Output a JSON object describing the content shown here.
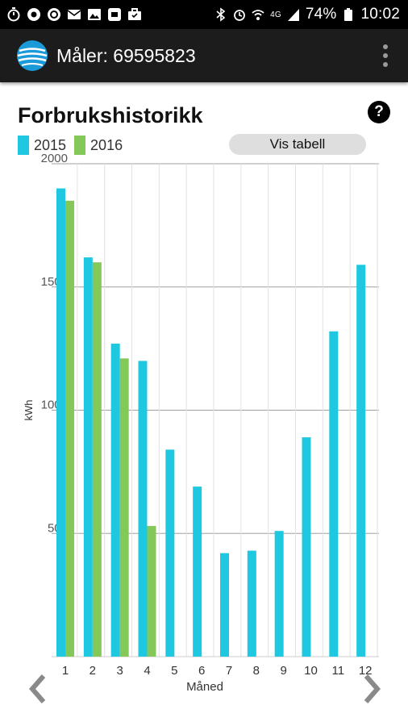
{
  "status_bar": {
    "battery": "74%",
    "time": "10:02",
    "network": "4G",
    "icons_left": [
      "timer-icon",
      "record-icon",
      "record-icon",
      "mail-icon",
      "image-icon",
      "app-icon",
      "briefcase-icon"
    ],
    "icons_right": [
      "bluetooth-icon",
      "alarm-icon",
      "wifi-icon",
      "signal-icon",
      "battery-icon"
    ]
  },
  "app_bar": {
    "title": "Måler: 69595823",
    "logo_icon": "globe-logo-icon",
    "menu_icon": "overflow-menu-icon"
  },
  "page": {
    "heading": "Forbrukshistorikk",
    "help_label": "?",
    "table_button_label": "Vis tabell"
  },
  "chart_data": {
    "type": "bar",
    "title": "Forbrukshistorikk",
    "xlabel": "Måned",
    "ylabel": "kWh",
    "categories": [
      "1",
      "2",
      "3",
      "4",
      "5",
      "6",
      "7",
      "8",
      "9",
      "10",
      "11",
      "12"
    ],
    "series": [
      {
        "name": "2015",
        "color": "#1ec8e0",
        "values": [
          1900,
          1620,
          1270,
          1200,
          840,
          690,
          420,
          430,
          510,
          890,
          1320,
          1590
        ]
      },
      {
        "name": "2016",
        "color": "#84c85a",
        "values": [
          1850,
          1600,
          1210,
          530,
          null,
          null,
          null,
          null,
          null,
          null,
          null,
          null
        ]
      }
    ],
    "ylim": [
      0,
      2000
    ],
    "yticks": [
      500,
      1000,
      1500,
      2000
    ],
    "grid": true,
    "legend": "top-left"
  }
}
